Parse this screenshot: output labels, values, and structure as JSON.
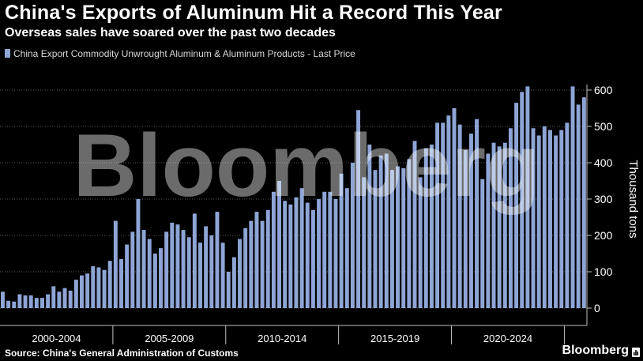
{
  "header": {
    "title": "China's Exports of Aluminum Hit a Record This Year",
    "subtitle": "Overseas sales have soared over the past two decades"
  },
  "footer": {
    "source": "Source: China's General Administration of Customs",
    "brand": "Bloomberg"
  },
  "watermark": "Bloomberg",
  "colors": {
    "bar": "#8ea5d6",
    "grid": "#595959",
    "background": "#000000",
    "text": "#ffffff"
  },
  "chart_data": {
    "type": "bar",
    "legend_entry": "China Export Commodity Unwrought Aluminum & Aluminum Products - Last Price",
    "legend_position": "top-left",
    "ylabel": "Thousand tons",
    "ylim": [
      -30,
      660
    ],
    "yticks": [
      0,
      100,
      200,
      300,
      400,
      500,
      600
    ],
    "y_axis_side": "right",
    "grid": "horizontal dotted",
    "x_period_labels": [
      "2000-2004",
      "2005-2009",
      "2010-2014",
      "2015-2019",
      "2020-2024"
    ],
    "series": [
      {
        "values": [
          45,
          20,
          18,
          38,
          35,
          35,
          28,
          28,
          38,
          60,
          45,
          55,
          48,
          78,
          90,
          95,
          115,
          112,
          105,
          130,
          240,
          135,
          175,
          210,
          300,
          215,
          190,
          150,
          165,
          210,
          235,
          230,
          215,
          195,
          260,
          180,
          225,
          200,
          265,
          180,
          100,
          140,
          190,
          220,
          240,
          265,
          240,
          270,
          320,
          350,
          295,
          285,
          305,
          330,
          290,
          270,
          300,
          320,
          320,
          300,
          370,
          330,
          400,
          545,
          360,
          450,
          380,
          420,
          425,
          380,
          390,
          385,
          410,
          460,
          360,
          440,
          450,
          510,
          510,
          530,
          550,
          505,
          435,
          480,
          520,
          355,
          425,
          455,
          445,
          455,
          495,
          565,
          595,
          610,
          495,
          475,
          500,
          490,
          475,
          490,
          510,
          610,
          560,
          580
        ]
      }
    ]
  }
}
